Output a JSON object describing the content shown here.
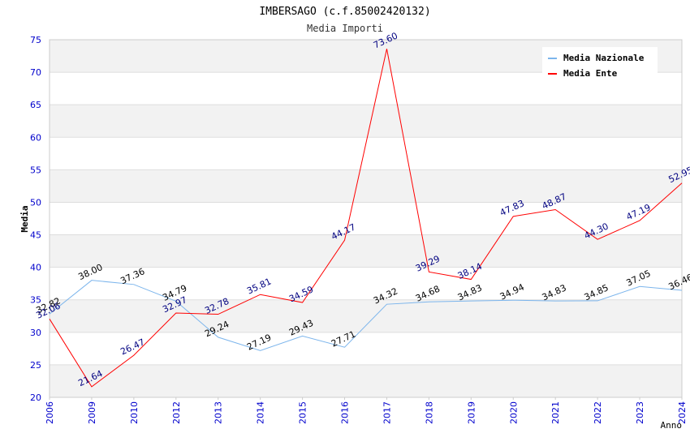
{
  "chart_data": {
    "type": "line",
    "title": "IMBERSAGO (c.f.85002420132)",
    "subtitle": "Media Importi",
    "xlabel": "Anno",
    "ylabel": "Media",
    "ylim": [
      20,
      75
    ],
    "ytick_step": 5,
    "categories": [
      "2006",
      "2009",
      "2010",
      "2012",
      "2013",
      "2014",
      "2015",
      "2016",
      "2017",
      "2018",
      "2019",
      "2020",
      "2021",
      "2022",
      "2023",
      "2024"
    ],
    "series": [
      {
        "name": "Media Nazionale",
        "color": "#7cb5ec",
        "label_color": "#000000",
        "values": [
          32.82,
          38.0,
          37.36,
          34.79,
          29.24,
          27.19,
          29.43,
          27.71,
          34.32,
          34.68,
          34.83,
          34.94,
          34.83,
          34.85,
          37.05,
          36.46
        ],
        "labels": [
          "32.82",
          "38.00",
          "37.36",
          "34.79",
          "29.24",
          "27.19",
          "29.43",
          "27.71",
          "34.32",
          "34.68",
          "34.83",
          "34.94",
          "34.83",
          "34.85",
          "37.05",
          "36.46"
        ]
      },
      {
        "name": "Media Ente",
        "color": "#ff0000",
        "label_color": "#000080",
        "values": [
          32.06,
          21.64,
          26.47,
          32.97,
          32.78,
          35.81,
          34.59,
          44.17,
          73.6,
          39.29,
          38.14,
          47.83,
          48.87,
          44.3,
          47.19,
          52.95
        ],
        "labels": [
          "32.06",
          "21.64",
          "26.47",
          "32.97",
          "32.78",
          "35.81",
          "34.59",
          "44.17",
          "73.60",
          "39.29",
          "38.14",
          "47.83",
          "48.87",
          "44.30",
          "47.19",
          "52.95"
        ]
      }
    ],
    "legend_position": "top-right",
    "colors": {
      "axis_text": "#0000cc",
      "band": "#f2f2f2",
      "grid": "#dddddd",
      "frame": "#cccccc"
    }
  }
}
